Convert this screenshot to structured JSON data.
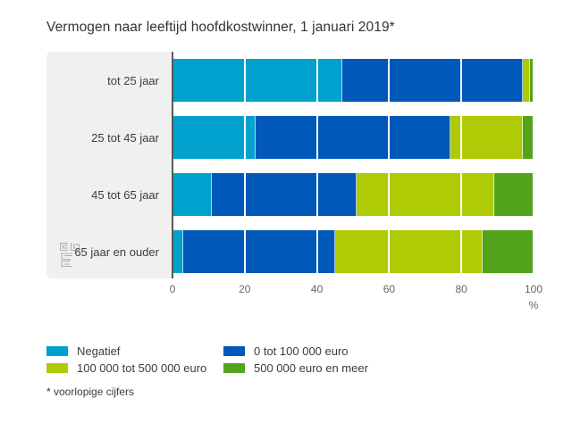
{
  "title": "Vermogen naar leeftijd hoofdkostwinner, 1 januari 2019*",
  "footnote": "* voorlopige cijfers",
  "colors": {
    "negatief": "#00a1cd",
    "blauw": "#0058b8",
    "geelgroen": "#afcb05",
    "groen": "#53a31d",
    "label_panel": "#f0f0f0",
    "axis_line": "#58585a",
    "gridline": "#ececec",
    "tick_text": "#666666",
    "logo_gray": "#b0b0b0"
  },
  "chart_data": {
    "type": "bar",
    "orientation": "horizontal",
    "stacked": true,
    "title": "Vermogen naar leeftijd hoofdkostwinner, 1 januari 2019*",
    "categories": [
      "tot 25 jaar",
      "25 tot 45 jaar",
      "45 tot 65 jaar",
      "65 jaar en ouder"
    ],
    "series": [
      {
        "name": "Negatief",
        "color": "#00a1cd",
        "values": [
          47,
          23,
          11,
          3
        ]
      },
      {
        "name": "0 tot 100 000 euro",
        "color": "#0058b8",
        "values": [
          50,
          54,
          40,
          42
        ]
      },
      {
        "name": "100 000 tot 500 000 euro",
        "color": "#afcb05",
        "values": [
          2,
          20,
          38,
          41
        ]
      },
      {
        "name": "500 000 euro en meer",
        "color": "#53a31d",
        "values": [
          1,
          3,
          11,
          14
        ]
      }
    ],
    "xlabel": "%",
    "xlim": [
      0,
      100
    ],
    "xticks": [
      0,
      20,
      40,
      60,
      80,
      100
    ],
    "grid": true,
    "legend_position": "bottom"
  }
}
